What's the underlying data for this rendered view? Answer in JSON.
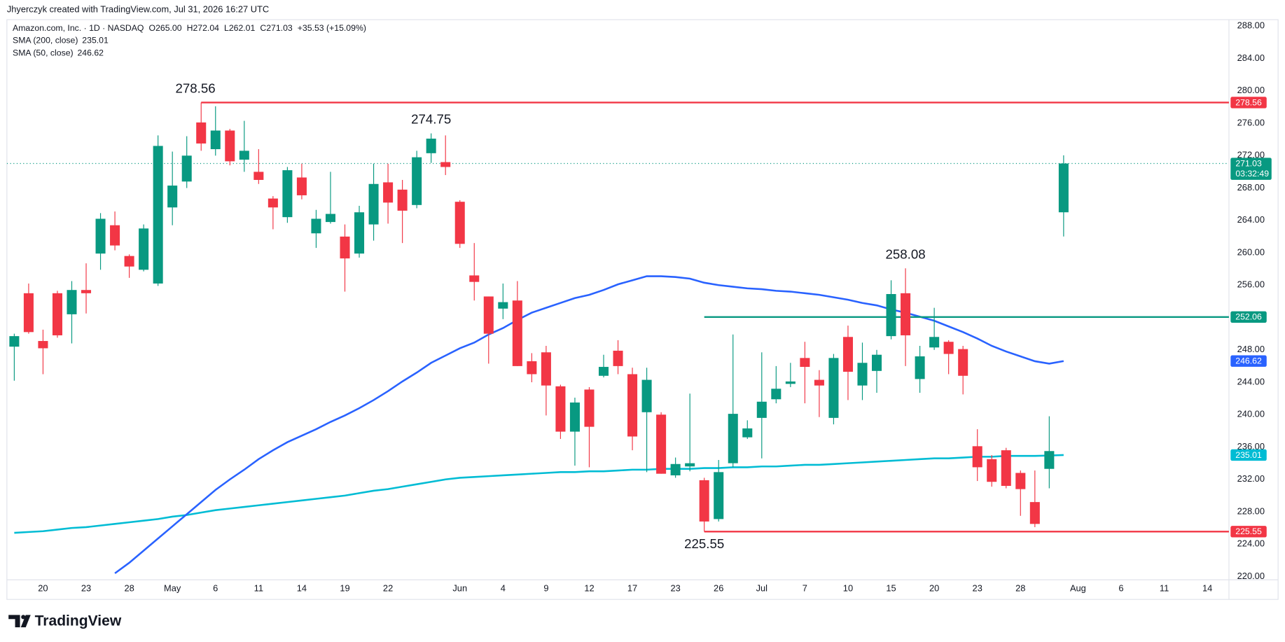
{
  "header": {
    "credit": "Jhyerczyk created with TradingView.com, Jul 31, 2026 16:27 UTC"
  },
  "footer": {
    "brand": "TradingView"
  },
  "chart_data": {
    "type": "candlestick",
    "legend": {
      "symbol": "Amazon.com, Inc. · 1D · NASDAQ",
      "ohlc_labels": [
        "O",
        "H",
        "L",
        "C"
      ],
      "ohlc_values": [
        "265.00",
        "272.04",
        "262.01",
        "271.03"
      ],
      "change": "+35.53 (+15.09%)"
    },
    "countdown": "03:32:49",
    "categories": [
      null,
      null,
      "20",
      null,
      null,
      "23",
      null,
      null,
      "28",
      null,
      null,
      "May",
      null,
      null,
      "6",
      null,
      null,
      "11",
      null,
      null,
      "14",
      null,
      null,
      "19",
      null,
      null,
      "22",
      null,
      null,
      null,
      null,
      "Jun",
      null,
      null,
      "4",
      null,
      null,
      "9",
      null,
      null,
      "12",
      null,
      null,
      "17",
      null,
      null,
      "23",
      null,
      null,
      "26",
      null,
      null,
      "Jul",
      null,
      null,
      "7",
      null,
      null,
      "10",
      null,
      null,
      "15",
      null,
      null,
      "20",
      null,
      null,
      "23",
      null,
      null,
      "28",
      null,
      null,
      null,
      "Aug",
      null,
      null,
      "6",
      null,
      null,
      "11",
      null,
      null,
      "14"
    ],
    "open": [
      248.4,
      255.0,
      249.1,
      255.0,
      252.4,
      255.4,
      259.9,
      263.4,
      259.6,
      257.9,
      256.2,
      265.6,
      268.8,
      276.1,
      272.8,
      275.1,
      271.5,
      270.0,
      266.7,
      264.4,
      269.3,
      262.4,
      263.8,
      262.0,
      259.9,
      263.5,
      268.7,
      267.8,
      265.9,
      272.3,
      271.2,
      266.3,
      257.2,
      254.6,
      253.1,
      254.1,
      246.6,
      247.7,
      243.5,
      237.9,
      243.1,
      244.8,
      247.9,
      245.0,
      240.3,
      240.0,
      232.5,
      233.6,
      231.9,
      227.1,
      234.0,
      237.2,
      239.6,
      241.9,
      243.8,
      247.0,
      244.3,
      239.6,
      249.6,
      243.6,
      245.4,
      249.7,
      255.0,
      244.4,
      248.3,
      249.0,
      248.1,
      236.1,
      234.5,
      235.6,
      232.8,
      229.2,
      233.3,
      265.0,
      null,
      null,
      null,
      null,
      null,
      null,
      null,
      null,
      null,
      null
    ],
    "high": [
      250.0,
      256.2,
      250.5,
      255.3,
      256.5,
      258.7,
      264.9,
      265.1,
      259.8,
      263.5,
      274.5,
      272.5,
      274.4,
      278.56,
      278.1,
      275.3,
      276.3,
      272.8,
      267.0,
      270.6,
      271.0,
      265.3,
      270.0,
      263.5,
      265.8,
      271.0,
      271.0,
      269.0,
      272.6,
      274.75,
      274.5,
      266.5,
      261.2,
      254.6,
      256.2,
      256.5,
      247.6,
      248.5,
      243.7,
      242.1,
      243.4,
      247.4,
      249.2,
      245.8,
      245.8,
      240.3,
      234.7,
      242.6,
      232.2,
      234.4,
      249.9,
      239.3,
      247.7,
      246.0,
      246.4,
      249.0,
      245.5,
      247.5,
      251.0,
      248.9,
      248.0,
      256.6,
      258.08,
      248.5,
      253.2,
      249.2,
      248.5,
      238.2,
      235.0,
      235.9,
      233.1,
      233.1,
      239.8,
      272.04,
      null,
      null,
      null,
      null,
      null,
      null,
      null,
      null,
      null,
      null
    ],
    "low": [
      244.2,
      250.0,
      245.0,
      249.5,
      248.8,
      252.5,
      257.9,
      260.3,
      256.9,
      257.7,
      255.9,
      263.4,
      268.0,
      272.6,
      272.0,
      270.8,
      270.0,
      268.5,
      262.9,
      263.7,
      266.6,
      260.6,
      263.6,
      255.2,
      259.4,
      261.5,
      263.6,
      261.2,
      265.5,
      271.1,
      269.6,
      260.6,
      254.1,
      246.3,
      251.8,
      246.0,
      244.0,
      239.9,
      237.0,
      233.7,
      233.5,
      244.6,
      245.0,
      235.6,
      232.9,
      232.7,
      232.2,
      233.0,
      225.55,
      226.8,
      233.5,
      237.0,
      234.6,
      241.4,
      243.4,
      241.4,
      239.7,
      238.8,
      241.8,
      241.8,
      242.7,
      249.3,
      246.0,
      242.7,
      248.0,
      245.0,
      242.5,
      231.8,
      231.1,
      230.9,
      227.5,
      226.1,
      230.9,
      262.01,
      null,
      null,
      null,
      null,
      null,
      null,
      null,
      null,
      null,
      null
    ],
    "close": [
      249.7,
      250.2,
      248.2,
      249.8,
      255.4,
      255.0,
      264.2,
      260.9,
      258.3,
      263.0,
      273.2,
      268.3,
      272.0,
      273.5,
      275.1,
      271.3,
      272.6,
      269.0,
      265.6,
      270.2,
      267.1,
      264.2,
      264.8,
      259.3,
      265.0,
      268.5,
      266.2,
      265.2,
      271.8,
      274.1,
      270.6,
      261.1,
      256.4,
      250.0,
      253.9,
      246.0,
      245.0,
      243.6,
      237.9,
      241.5,
      238.5,
      245.9,
      246.0,
      237.3,
      244.3,
      232.7,
      233.9,
      234.0,
      226.8,
      232.9,
      240.1,
      238.3,
      241.6,
      243.2,
      244.1,
      245.9,
      243.6,
      247.0,
      245.3,
      246.4,
      247.4,
      254.9,
      249.8,
      247.2,
      249.6,
      247.5,
      244.8,
      233.5,
      231.7,
      231.2,
      230.8,
      226.5,
      235.5,
      271.03,
      null,
      null,
      null,
      null,
      null,
      null,
      null,
      null,
      null,
      null
    ],
    "up_color": "#089981",
    "down_color": "#f23645",
    "series": [
      {
        "name": "SMA (200, close)",
        "color": "#00bcd4",
        "values": [
          225.4,
          225.5,
          225.6,
          225.8,
          226.0,
          226.1,
          226.3,
          226.5,
          226.7,
          226.9,
          227.1,
          227.4,
          227.6,
          227.9,
          228.2,
          228.4,
          228.6,
          228.8,
          229.0,
          229.2,
          229.4,
          229.6,
          229.8,
          230.0,
          230.3,
          230.6,
          230.8,
          231.1,
          231.4,
          231.7,
          232.0,
          232.2,
          232.3,
          232.4,
          232.5,
          232.6,
          232.7,
          232.8,
          232.9,
          232.9,
          233.0,
          233.0,
          233.1,
          233.2,
          233.2,
          233.3,
          233.3,
          233.3,
          233.4,
          233.4,
          233.5,
          233.5,
          233.6,
          233.6,
          233.7,
          233.8,
          233.8,
          233.9,
          234.0,
          234.1,
          234.2,
          234.3,
          234.4,
          234.5,
          234.6,
          234.6,
          234.7,
          234.8,
          234.8,
          234.9,
          234.9,
          234.9,
          234.95,
          235.01,
          null,
          null,
          null,
          null,
          null,
          null,
          null,
          null,
          null,
          null
        ]
      },
      {
        "name": "SMA (50, close)",
        "color": "#2962ff",
        "values": [
          null,
          null,
          null,
          null,
          null,
          null,
          null,
          220.4,
          221.7,
          223.2,
          224.7,
          226.2,
          227.7,
          229.2,
          230.7,
          232.0,
          233.2,
          234.5,
          235.6,
          236.6,
          237.4,
          238.2,
          239.1,
          239.9,
          240.8,
          241.8,
          242.9,
          244.1,
          245.2,
          246.4,
          247.3,
          248.2,
          248.9,
          249.9,
          250.7,
          251.7,
          252.6,
          253.2,
          253.8,
          254.4,
          254.8,
          255.4,
          256.1,
          256.6,
          257.1,
          257.1,
          257.0,
          256.8,
          256.3,
          256.0,
          255.8,
          255.6,
          255.5,
          255.3,
          255.2,
          255.0,
          254.8,
          254.5,
          254.2,
          253.8,
          253.5,
          253.0,
          252.6,
          252.1,
          251.6,
          250.9,
          250.2,
          249.4,
          248.5,
          247.8,
          247.2,
          246.6,
          246.3,
          246.62,
          null,
          null,
          null,
          null,
          null,
          null,
          null,
          null,
          null,
          null
        ]
      }
    ],
    "lines": [
      {
        "value": 278.56,
        "color": "#f23645"
      },
      {
        "value": 252.06,
        "color": "#089981"
      },
      {
        "value": 225.55,
        "color": "#f23645"
      }
    ],
    "ylim": [
      219.6,
      288.8
    ],
    "yticks": [
      {
        "value": 220,
        "label": "220.00"
      },
      {
        "value": 224,
        "label": "224.00"
      },
      {
        "value": 228,
        "label": "228.00"
      },
      {
        "value": 232,
        "label": "232.00"
      },
      {
        "value": 236,
        "label": "236.00"
      },
      {
        "value": 240,
        "label": "240.00"
      },
      {
        "value": 244,
        "label": "244.00"
      },
      {
        "value": 248,
        "label": "248.00"
      },
      {
        "value": 252,
        "label": "252.00"
      },
      {
        "value": 256,
        "label": "256.00"
      },
      {
        "value": 260,
        "label": "260.00"
      },
      {
        "value": 264,
        "label": "264.00"
      },
      {
        "value": 268,
        "label": "268.00"
      },
      {
        "value": 272,
        "label": "272.00"
      },
      {
        "value": 276,
        "label": "276.00"
      },
      {
        "value": 280,
        "label": "280.00"
      },
      {
        "value": 284,
        "label": "284.00"
      },
      {
        "value": 288,
        "label": "288.00"
      }
    ],
    "grid": false
  }
}
